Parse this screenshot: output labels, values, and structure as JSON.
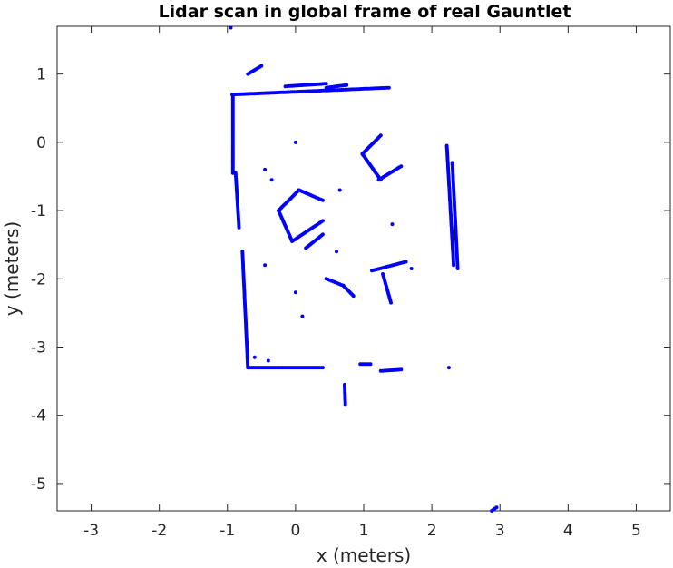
{
  "chart_data": {
    "type": "scatter",
    "title": "Lidar scan in global frame of real Gauntlet",
    "xlabel": "x (meters)",
    "ylabel": "y (meters)",
    "xlim": [
      -3.5,
      5.5
    ],
    "ylim": [
      -5.4,
      1.7
    ],
    "xticks": [
      -3,
      -2,
      -1,
      0,
      1,
      2,
      3,
      4,
      5
    ],
    "yticks": [
      1,
      0,
      -1,
      -2,
      -3,
      -4,
      -5
    ],
    "grid": false,
    "legend": "none",
    "marker_color": "#0000ff",
    "series": [
      {
        "segments": [
          [
            [
              -0.93,
              0.7
            ],
            [
              1.37,
              0.8
            ]
          ],
          [
            [
              -0.92,
              0.7
            ],
            [
              -0.92,
              -0.45
            ]
          ],
          [
            [
              -0.88,
              -0.45
            ],
            [
              -0.83,
              -1.25
            ]
          ],
          [
            [
              -0.78,
              -1.6
            ],
            [
              -0.7,
              -3.3
            ]
          ],
          [
            [
              -0.7,
              -3.3
            ],
            [
              0.4,
              -3.3
            ]
          ],
          [
            [
              -0.15,
              0.82
            ],
            [
              0.45,
              0.86
            ]
          ],
          [
            [
              0.45,
              0.8
            ],
            [
              0.75,
              0.84
            ]
          ],
          [
            [
              1.25,
              -0.55
            ],
            [
              0.98,
              -0.17
            ]
          ],
          [
            [
              0.98,
              -0.17
            ],
            [
              1.25,
              0.1
            ]
          ],
          [
            [
              1.22,
              -0.55
            ],
            [
              1.55,
              -0.35
            ]
          ],
          [
            [
              -0.25,
              -1.0
            ],
            [
              0.05,
              -0.7
            ]
          ],
          [
            [
              0.05,
              -0.7
            ],
            [
              0.4,
              -0.85
            ]
          ],
          [
            [
              -0.25,
              -1.0
            ],
            [
              -0.05,
              -1.45
            ]
          ],
          [
            [
              -0.05,
              -1.45
            ],
            [
              0.4,
              -1.15
            ]
          ],
          [
            [
              0.15,
              -1.55
            ],
            [
              0.4,
              -1.35
            ]
          ],
          [
            [
              1.12,
              -1.88
            ],
            [
              1.62,
              -1.75
            ]
          ],
          [
            [
              1.28,
              -1.93
            ],
            [
              1.4,
              -2.35
            ]
          ],
          [
            [
              0.45,
              -2.0
            ],
            [
              0.7,
              -2.1
            ]
          ],
          [
            [
              0.7,
              -2.1
            ],
            [
              0.85,
              -2.25
            ]
          ],
          [
            [
              2.22,
              -0.05
            ],
            [
              2.32,
              -1.8
            ]
          ],
          [
            [
              2.3,
              -0.3
            ],
            [
              2.38,
              -1.85
            ]
          ],
          [
            [
              0.95,
              -3.25
            ],
            [
              1.1,
              -3.25
            ]
          ],
          [
            [
              1.25,
              -3.35
            ],
            [
              1.55,
              -3.33
            ]
          ],
          [
            [
              0.72,
              -3.55
            ],
            [
              0.73,
              -3.85
            ]
          ],
          [
            [
              -0.7,
              1.0
            ],
            [
              -0.5,
              1.12
            ]
          ],
          [
            [
              2.88,
              -5.4
            ],
            [
              2.95,
              -5.35
            ]
          ]
        ],
        "points": [
          [
            -0.95,
            1.68
          ],
          [
            0.0,
            0.0
          ],
          [
            -0.45,
            -0.4
          ],
          [
            -0.35,
            -0.55
          ],
          [
            0.65,
            -0.7
          ],
          [
            1.42,
            -1.2
          ],
          [
            -0.45,
            -1.8
          ],
          [
            0.6,
            -1.6
          ],
          [
            0.0,
            -2.2
          ],
          [
            0.1,
            -2.55
          ],
          [
            1.7,
            -1.85
          ],
          [
            2.25,
            -3.3
          ],
          [
            -0.6,
            -3.15
          ],
          [
            -0.4,
            -3.2
          ]
        ]
      }
    ]
  }
}
